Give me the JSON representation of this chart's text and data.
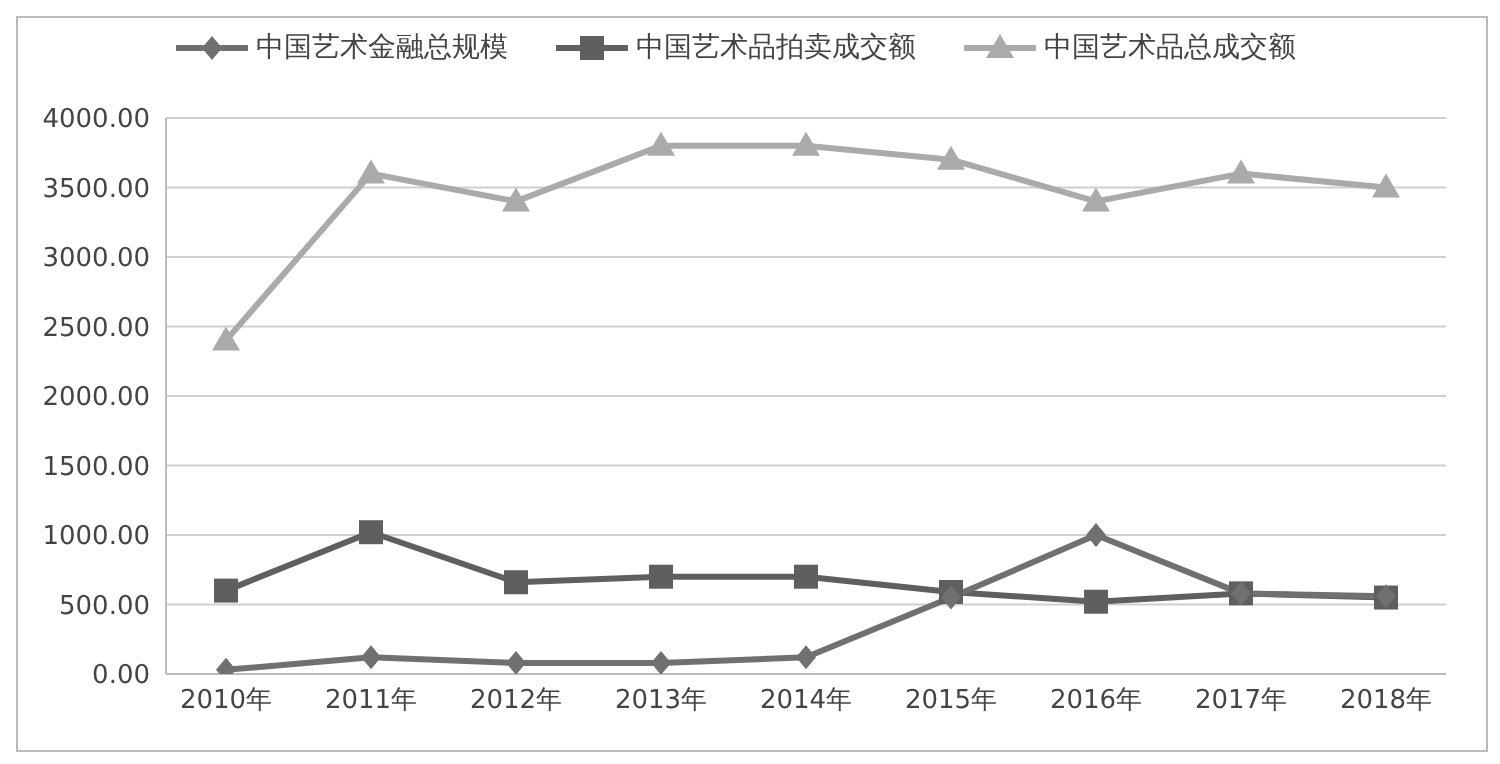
{
  "chart_data": {
    "type": "line",
    "categories": [
      "2010年",
      "2011年",
      "2012年",
      "2013年",
      "2014年",
      "2015年",
      "2016年",
      "2017年",
      "2018年"
    ],
    "series": [
      {
        "name": "中国艺术金融总规模",
        "color": "#707070",
        "marker": "diamond",
        "values": [
          30,
          120,
          80,
          80,
          120,
          550,
          1000,
          580,
          560
        ]
      },
      {
        "name": "中国艺术品拍卖成交额",
        "color": "#5f5f5f",
        "marker": "square",
        "values": [
          600,
          1020,
          660,
          700,
          700,
          590,
          520,
          580,
          550
        ]
      },
      {
        "name": "中国艺术品总成交额",
        "color": "#aaaaaa",
        "marker": "triangle",
        "values": [
          2400,
          3600,
          3400,
          3800,
          3800,
          3700,
          3400,
          3600,
          3500
        ]
      }
    ],
    "ylim": [
      0,
      4000
    ],
    "yticks": [
      {
        "value": 0,
        "label": "0.00"
      },
      {
        "value": 500,
        "label": "500.00"
      },
      {
        "value": 1000,
        "label": "1000.00"
      },
      {
        "value": 1500,
        "label": "1500.00"
      },
      {
        "value": 2000,
        "label": "2000.00"
      },
      {
        "value": 2500,
        "label": "2500.00"
      },
      {
        "value": 3000,
        "label": "3000.00"
      },
      {
        "value": 3500,
        "label": "3500.00"
      },
      {
        "value": 4000,
        "label": "4000.00"
      }
    ],
    "grid": "y",
    "legend": "top",
    "line_style": "solid"
  }
}
